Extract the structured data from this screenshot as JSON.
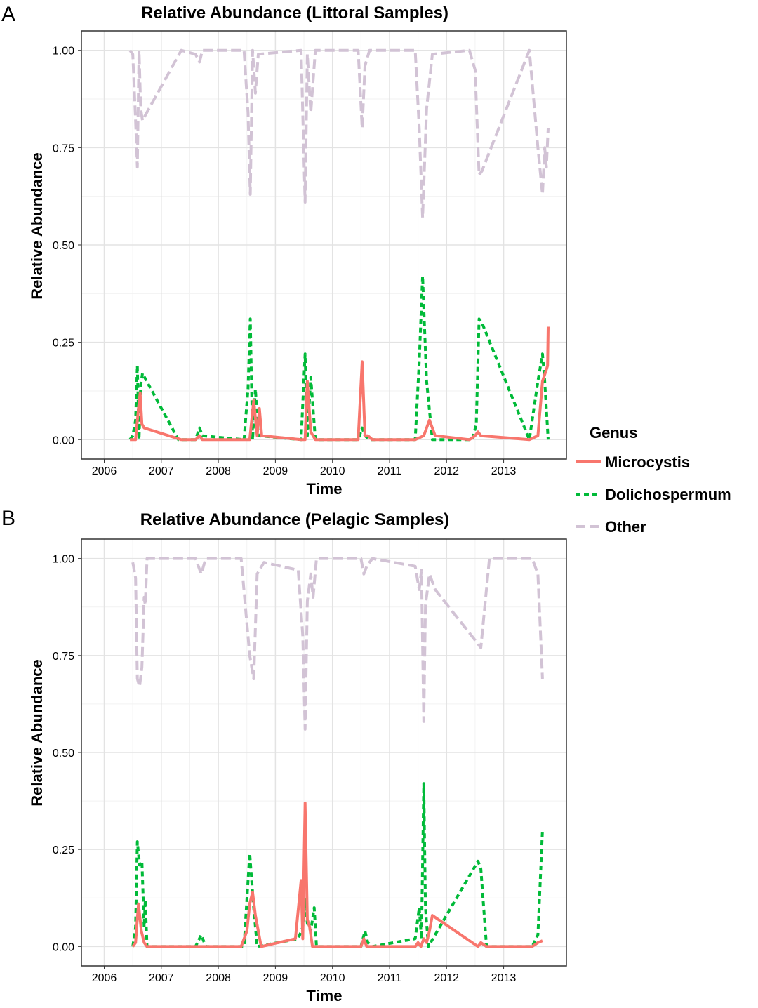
{
  "legend": {
    "title": "Genus",
    "items": [
      {
        "name": "Microcystis",
        "color": "#F8766D",
        "dash": "solid"
      },
      {
        "name": "Dolichospermum",
        "color": "#00BA38",
        "dash": "dotted"
      },
      {
        "name": "Other",
        "color": "#D2C3D5",
        "dash": "dashed"
      }
    ]
  },
  "chart_data": [
    {
      "panel": "A",
      "type": "line",
      "title": "Relative Abundance (Littoral Samples)",
      "xlabel": "Time",
      "ylabel": "Relative Abundance",
      "xlim": [
        2005.6,
        2014.1
      ],
      "ylim": [
        -0.05,
        1.05
      ],
      "xticks": [
        2006,
        2007,
        2008,
        2009,
        2010,
        2011,
        2012,
        2013
      ],
      "yticks": [
        0.0,
        0.25,
        0.5,
        0.75,
        1.0
      ],
      "ytick_labels": [
        "0.00",
        "0.25",
        "0.50",
        "0.75",
        "1.00"
      ],
      "series": [
        {
          "name": "Microcystis",
          "points": [
            [
              2006.45,
              0.0
            ],
            [
              2006.55,
              0.0
            ],
            [
              2006.6,
              0.08
            ],
            [
              2006.63,
              0.12
            ],
            [
              2006.66,
              0.04
            ],
            [
              2006.7,
              0.03
            ],
            [
              2007.35,
              0.0
            ],
            [
              2007.6,
              0.0
            ],
            [
              2007.67,
              0.01
            ],
            [
              2007.72,
              0.0
            ],
            [
              2008.45,
              0.0
            ],
            [
              2008.55,
              0.0
            ],
            [
              2008.62,
              0.1
            ],
            [
              2008.68,
              0.01
            ],
            [
              2008.72,
              0.08
            ],
            [
              2008.76,
              0.01
            ],
            [
              2009.45,
              0.0
            ],
            [
              2009.52,
              0.0
            ],
            [
              2009.56,
              0.15
            ],
            [
              2009.62,
              0.02
            ],
            [
              2009.7,
              0.0
            ],
            [
              2010.45,
              0.0
            ],
            [
              2010.52,
              0.2
            ],
            [
              2010.57,
              0.01
            ],
            [
              2010.62,
              0.01
            ],
            [
              2010.7,
              0.0
            ],
            [
              2011.45,
              0.0
            ],
            [
              2011.6,
              0.01
            ],
            [
              2011.7,
              0.05
            ],
            [
              2011.8,
              0.01
            ],
            [
              2012.4,
              0.0
            ],
            [
              2012.5,
              0.01
            ],
            [
              2012.55,
              0.02
            ],
            [
              2012.6,
              0.01
            ],
            [
              2013.45,
              0.0
            ],
            [
              2013.6,
              0.01
            ],
            [
              2013.68,
              0.15
            ],
            [
              2013.75,
              0.18
            ],
            [
              2013.77,
              0.19
            ],
            [
              2013.78,
              0.29
            ]
          ]
        },
        {
          "name": "Dolichospermum",
          "points": [
            [
              2006.45,
              0.0
            ],
            [
              2006.5,
              0.01
            ],
            [
              2006.55,
              0.05
            ],
            [
              2006.58,
              0.19
            ],
            [
              2006.61,
              0.0
            ],
            [
              2006.64,
              0.14
            ],
            [
              2006.67,
              0.17
            ],
            [
              2007.3,
              0.0
            ],
            [
              2007.6,
              0.0
            ],
            [
              2007.67,
              0.03
            ],
            [
              2007.72,
              0.01
            ],
            [
              2008.45,
              0.0
            ],
            [
              2008.52,
              0.13
            ],
            [
              2008.56,
              0.31
            ],
            [
              2008.6,
              0.0
            ],
            [
              2008.65,
              0.13
            ],
            [
              2008.7,
              0.01
            ],
            [
              2009.45,
              0.0
            ],
            [
              2009.52,
              0.22
            ],
            [
              2009.56,
              0.01
            ],
            [
              2009.62,
              0.16
            ],
            [
              2009.7,
              0.0
            ],
            [
              2010.45,
              0.0
            ],
            [
              2010.52,
              0.03
            ],
            [
              2010.57,
              0.01
            ],
            [
              2010.65,
              0.0
            ],
            [
              2011.45,
              0.0
            ],
            [
              2011.52,
              0.2
            ],
            [
              2011.58,
              0.42
            ],
            [
              2011.65,
              0.15
            ],
            [
              2011.75,
              0.0
            ],
            [
              2012.45,
              0.0
            ],
            [
              2012.52,
              0.04
            ],
            [
              2012.57,
              0.31
            ],
            [
              2012.62,
              0.3
            ],
            [
              2013.45,
              0.0
            ],
            [
              2013.6,
              0.15
            ],
            [
              2013.68,
              0.22
            ],
            [
              2013.72,
              0.15
            ],
            [
              2013.78,
              0.0
            ]
          ]
        },
        {
          "name": "Other",
          "points": [
            [
              2006.45,
              1.0
            ],
            [
              2006.5,
              0.99
            ],
            [
              2006.55,
              0.82
            ],
            [
              2006.58,
              0.7
            ],
            [
              2006.61,
              1.0
            ],
            [
              2006.64,
              0.85
            ],
            [
              2006.67,
              0.82
            ],
            [
              2007.35,
              1.0
            ],
            [
              2007.6,
              0.99
            ],
            [
              2007.67,
              0.97
            ],
            [
              2007.72,
              1.0
            ],
            [
              2008.45,
              1.0
            ],
            [
              2008.52,
              0.84
            ],
            [
              2008.56,
              0.63
            ],
            [
              2008.6,
              1.0
            ],
            [
              2008.65,
              0.89
            ],
            [
              2008.7,
              0.99
            ],
            [
              2009.45,
              1.0
            ],
            [
              2009.52,
              0.61
            ],
            [
              2009.56,
              0.99
            ],
            [
              2009.62,
              0.84
            ],
            [
              2009.7,
              1.0
            ],
            [
              2010.45,
              1.0
            ],
            [
              2010.52,
              0.8
            ],
            [
              2010.57,
              0.96
            ],
            [
              2010.65,
              1.0
            ],
            [
              2011.45,
              1.0
            ],
            [
              2011.52,
              0.8
            ],
            [
              2011.58,
              0.57
            ],
            [
              2011.65,
              0.85
            ],
            [
              2011.75,
              0.99
            ],
            [
              2012.4,
              1.0
            ],
            [
              2012.5,
              0.95
            ],
            [
              2012.57,
              0.68
            ],
            [
              2012.62,
              0.69
            ],
            [
              2013.45,
              1.0
            ],
            [
              2013.6,
              0.75
            ],
            [
              2013.68,
              0.63
            ],
            [
              2013.72,
              0.75
            ],
            [
              2013.75,
              0.7
            ],
            [
              2013.78,
              0.8
            ]
          ]
        }
      ]
    },
    {
      "panel": "B",
      "type": "line",
      "title": "Relative Abundance (Pelagic Samples)",
      "xlabel": "Time",
      "ylabel": "Relative Abundance",
      "xlim": [
        2005.6,
        2014.1
      ],
      "ylim": [
        -0.05,
        1.05
      ],
      "xticks": [
        2006,
        2007,
        2008,
        2009,
        2010,
        2011,
        2012,
        2013
      ],
      "yticks": [
        0.0,
        0.25,
        0.5,
        0.75,
        1.0
      ],
      "ytick_labels": [
        "0.00",
        "0.25",
        "0.50",
        "0.75",
        "1.00"
      ],
      "series": [
        {
          "name": "Microcystis",
          "points": [
            [
              2006.5,
              0.0
            ],
            [
              2006.55,
              0.01
            ],
            [
              2006.6,
              0.11
            ],
            [
              2006.65,
              0.04
            ],
            [
              2006.7,
              0.01
            ],
            [
              2006.75,
              0.0
            ],
            [
              2008.4,
              0.0
            ],
            [
              2008.5,
              0.04
            ],
            [
              2008.55,
              0.11
            ],
            [
              2008.6,
              0.14
            ],
            [
              2008.65,
              0.08
            ],
            [
              2008.75,
              0.0
            ],
            [
              2009.35,
              0.02
            ],
            [
              2009.45,
              0.17
            ],
            [
              2009.48,
              0.02
            ],
            [
              2009.52,
              0.37
            ],
            [
              2009.56,
              0.07
            ],
            [
              2009.6,
              0.05
            ],
            [
              2009.65,
              0.0
            ],
            [
              2010.5,
              0.0
            ],
            [
              2010.55,
              0.02
            ],
            [
              2010.6,
              0.0
            ],
            [
              2011.45,
              0.0
            ],
            [
              2011.5,
              0.01
            ],
            [
              2011.55,
              0.0
            ],
            [
              2011.6,
              0.02
            ],
            [
              2011.65,
              0.01
            ],
            [
              2011.7,
              0.04
            ],
            [
              2011.75,
              0.08
            ],
            [
              2012.55,
              0.0
            ],
            [
              2012.6,
              0.01
            ],
            [
              2012.7,
              0.0
            ],
            [
              2013.5,
              0.0
            ],
            [
              2013.6,
              0.01
            ],
            [
              2013.68,
              0.015
            ]
          ]
        },
        {
          "name": "Dolichospermum",
          "points": [
            [
              2006.5,
              0.0
            ],
            [
              2006.55,
              0.05
            ],
            [
              2006.58,
              0.27
            ],
            [
              2006.62,
              0.21
            ],
            [
              2006.66,
              0.22
            ],
            [
              2006.7,
              0.05
            ],
            [
              2006.72,
              0.12
            ],
            [
              2006.75,
              0.0
            ],
            [
              2007.6,
              0.0
            ],
            [
              2007.7,
              0.03
            ],
            [
              2007.78,
              0.0
            ],
            [
              2008.45,
              0.0
            ],
            [
              2008.55,
              0.24
            ],
            [
              2008.62,
              0.1
            ],
            [
              2008.68,
              0.0
            ],
            [
              2009.4,
              0.02
            ],
            [
              2009.48,
              0.05
            ],
            [
              2009.52,
              0.12
            ],
            [
              2009.56,
              0.06
            ],
            [
              2009.62,
              0.04
            ],
            [
              2009.68,
              0.1
            ],
            [
              2009.72,
              0.0
            ],
            [
              2010.5,
              0.0
            ],
            [
              2010.57,
              0.04
            ],
            [
              2010.62,
              0.01
            ],
            [
              2010.7,
              0.0
            ],
            [
              2011.45,
              0.02
            ],
            [
              2011.52,
              0.1
            ],
            [
              2011.56,
              0.02
            ],
            [
              2011.6,
              0.42
            ],
            [
              2011.63,
              0.1
            ],
            [
              2011.68,
              0.0
            ],
            [
              2012.55,
              0.22
            ],
            [
              2012.6,
              0.2
            ],
            [
              2012.7,
              0.0
            ],
            [
              2013.5,
              0.0
            ],
            [
              2013.6,
              0.03
            ],
            [
              2013.68,
              0.3
            ]
          ]
        },
        {
          "name": "Other",
          "points": [
            [
              2006.5,
              0.99
            ],
            [
              2006.55,
              0.95
            ],
            [
              2006.58,
              0.69
            ],
            [
              2006.62,
              0.67
            ],
            [
              2006.66,
              0.72
            ],
            [
              2006.7,
              0.9
            ],
            [
              2006.72,
              0.88
            ],
            [
              2006.75,
              1.0
            ],
            [
              2007.6,
              1.0
            ],
            [
              2007.65,
              0.98
            ],
            [
              2007.7,
              0.96
            ],
            [
              2007.78,
              1.0
            ],
            [
              2008.4,
              1.0
            ],
            [
              2008.55,
              0.75
            ],
            [
              2008.62,
              0.69
            ],
            [
              2008.68,
              0.96
            ],
            [
              2008.8,
              0.99
            ],
            [
              2009.4,
              0.97
            ],
            [
              2009.48,
              0.8
            ],
            [
              2009.52,
              0.56
            ],
            [
              2009.56,
              0.89
            ],
            [
              2009.62,
              0.96
            ],
            [
              2009.66,
              0.9
            ],
            [
              2009.72,
              1.0
            ],
            [
              2010.5,
              1.0
            ],
            [
              2010.55,
              0.96
            ],
            [
              2010.6,
              0.98
            ],
            [
              2010.7,
              1.0
            ],
            [
              2011.45,
              0.98
            ],
            [
              2011.52,
              0.92
            ],
            [
              2011.56,
              0.97
            ],
            [
              2011.6,
              0.58
            ],
            [
              2011.63,
              0.88
            ],
            [
              2011.7,
              0.96
            ],
            [
              2011.8,
              0.92
            ],
            [
              2012.55,
              0.78
            ],
            [
              2012.6,
              0.77
            ],
            [
              2012.75,
              1.0
            ],
            [
              2013.5,
              1.0
            ],
            [
              2013.6,
              0.96
            ],
            [
              2013.68,
              0.69
            ]
          ]
        }
      ]
    }
  ]
}
